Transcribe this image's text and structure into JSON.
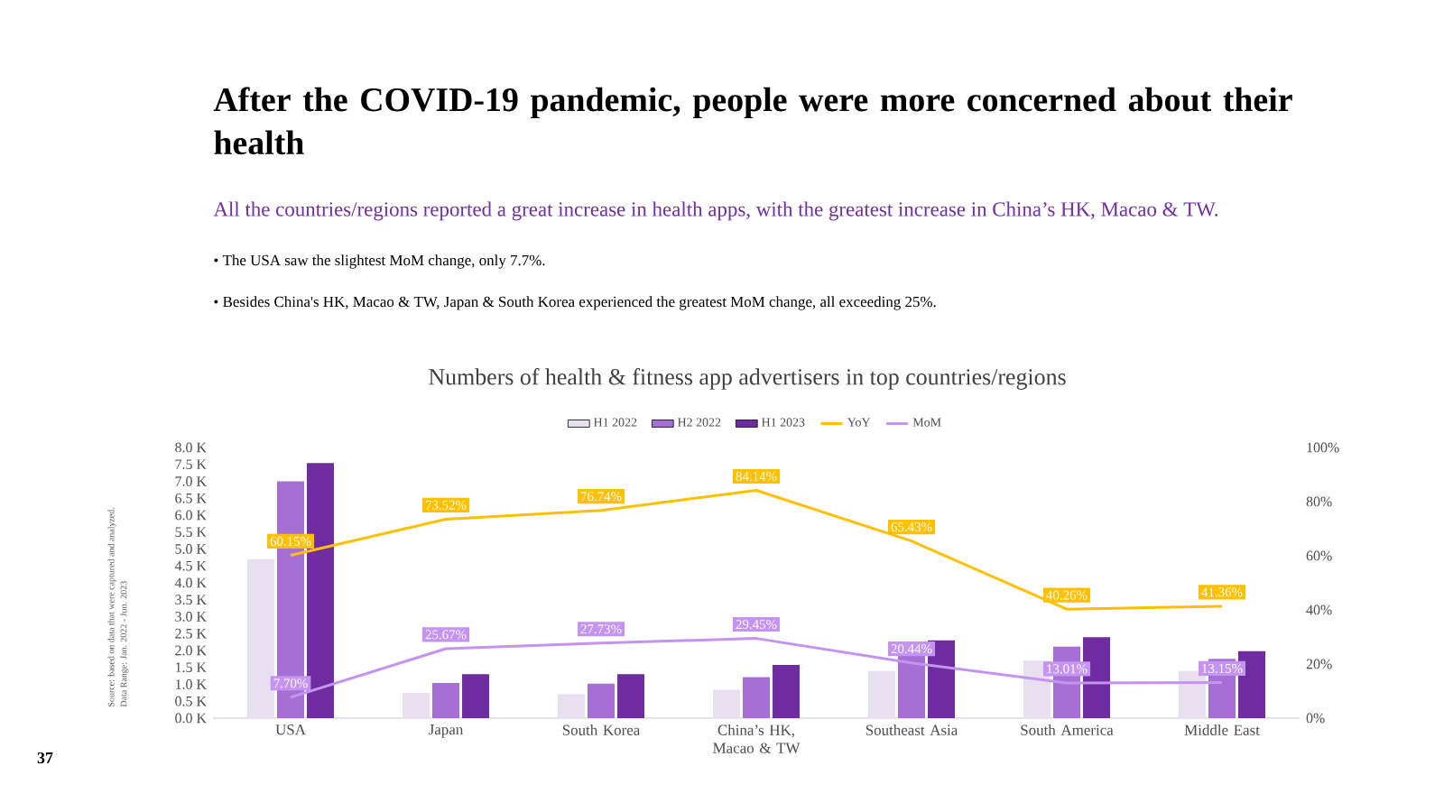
{
  "chart_data": {
    "type": "bar",
    "title": "After the COVID-19 pandemic, people were more concerned about their health",
    "subtitle": "All the countries/regions reported a great increase in health apps, with the greatest increase in China’s HK, Macao & TW.",
    "annotations": [
      "• The USA saw the slightest MoM change, only 7.7%.",
      "• Besides China's HK, Macao & TW, Japan & South Korea experienced the greatest MoM change, all exceeding 25%.",
      "Numbers of health & fitness app advertisers in top countries/regions",
      "Source: based on data that were captured and analyzed.",
      "Data Range: Jan. 2022 - Jun. 2023",
      "37"
    ],
    "categories": [
      "USA",
      "Japan",
      "South Korea",
      "China’s HK, Macao & TW",
      "Southeast Asia",
      "South America",
      "Middle East"
    ],
    "series": [
      {
        "name": "H1 2022",
        "color": "#e8dff0",
        "values": [
          4.7,
          0.75,
          0.71,
          0.84,
          1.39,
          1.7,
          1.39
        ]
      },
      {
        "name": "H2 2022",
        "color": "#a66fd6",
        "values": [
          7.0,
          1.04,
          1.02,
          1.21,
          1.91,
          2.11,
          1.75
        ]
      },
      {
        "name": "H1 2023",
        "color": "#6f2ca0",
        "values": [
          7.54,
          1.3,
          1.3,
          1.57,
          2.3,
          2.39,
          1.98
        ]
      },
      {
        "name": "YoY",
        "type": "line",
        "axis": "y2",
        "color": "#ffc000",
        "values": [
          60.15,
          73.52,
          76.74,
          84.14,
          65.43,
          40.26,
          41.36
        ],
        "value_labels": [
          "60.15%",
          "73.52%",
          "76.74%",
          "84.14%",
          "65.43%",
          "40.26%",
          "41.36%"
        ]
      },
      {
        "name": "MoM",
        "type": "line",
        "axis": "y2",
        "color": "#c593f0",
        "values": [
          7.7,
          25.67,
          27.73,
          29.45,
          20.44,
          13.01,
          13.15
        ],
        "value_labels": [
          "7.70%",
          "25.67%",
          "27.73%",
          "29.45%",
          "20.44%",
          "13.01%",
          "13.15%"
        ]
      }
    ],
    "ylim": [
      0,
      8
    ],
    "yticks": [
      {
        "value": 0,
        "label": "0.0 K"
      },
      {
        "value": 0.5,
        "label": "0.5 K"
      },
      {
        "value": 1,
        "label": "1.0 K"
      },
      {
        "value": 1.5,
        "label": "1.5 K"
      },
      {
        "value": 2,
        "label": "2.0 K"
      },
      {
        "value": 2.5,
        "label": "2.5 K"
      },
      {
        "value": 3,
        "label": "3.0 K"
      },
      {
        "value": 3.5,
        "label": "3.5 K"
      },
      {
        "value": 4,
        "label": "4.0 K"
      },
      {
        "value": 4.5,
        "label": "4.5 K"
      },
      {
        "value": 5,
        "label": "5.0 K"
      },
      {
        "value": 5.5,
        "label": "5.5 K"
      },
      {
        "value": 6,
        "label": "6.0 K"
      },
      {
        "value": 6.5,
        "label": "6.5 K"
      },
      {
        "value": 7,
        "label": "7.0 K"
      },
      {
        "value": 7.5,
        "label": "7.5 K"
      },
      {
        "value": 8,
        "label": "8.0 K"
      }
    ],
    "y2lim": [
      0,
      100
    ],
    "y2ticks": [
      {
        "value": 0,
        "label": "0%"
      },
      {
        "value": 20,
        "label": "20%"
      },
      {
        "value": 40,
        "label": "40%"
      },
      {
        "value": 60,
        "label": "60%"
      },
      {
        "value": 80,
        "label": "80%"
      },
      {
        "value": 100,
        "label": "100%"
      }
    ],
    "legend": "top"
  }
}
